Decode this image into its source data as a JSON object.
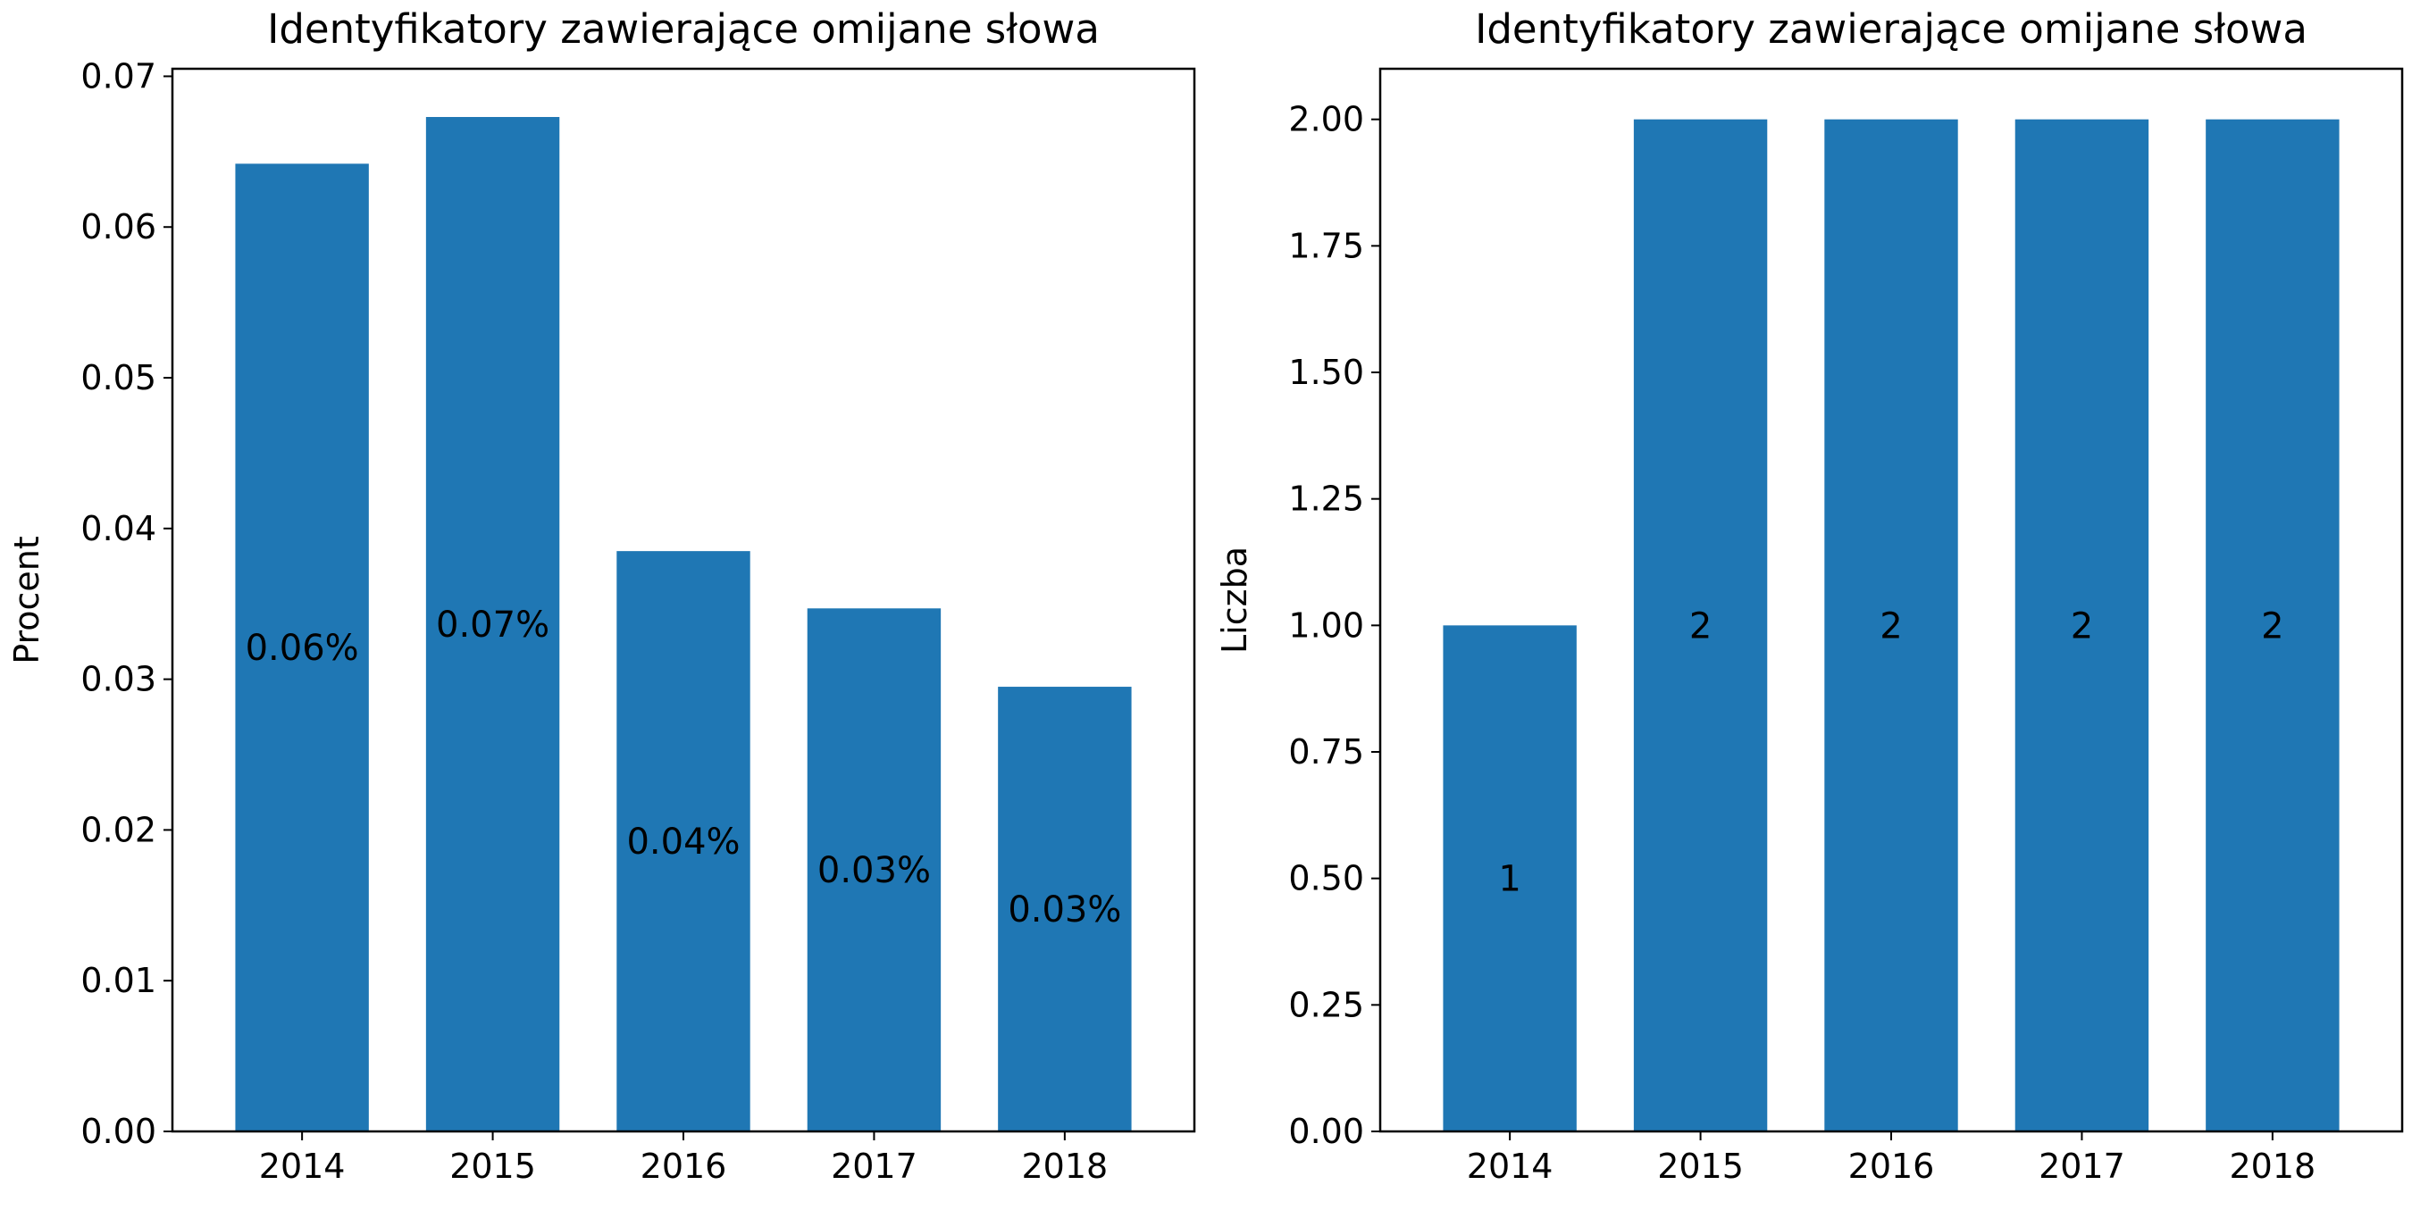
{
  "chart_data": [
    {
      "type": "bar",
      "title": "Identyfikatory zawierające omijane słowa",
      "xlabel": "",
      "ylabel": "Procent",
      "categories": [
        "2014",
        "2015",
        "2016",
        "2017",
        "2018"
      ],
      "values": [
        0.0642,
        0.0673,
        0.0385,
        0.0347,
        0.0295
      ],
      "bar_labels": [
        "0.06%",
        "0.07%",
        "0.04%",
        "0.03%",
        "0.03%"
      ],
      "ylim": [
        0,
        0.0705
      ],
      "yticks": [
        "0.00",
        "0.01",
        "0.02",
        "0.03",
        "0.04",
        "0.05",
        "0.06",
        "0.07"
      ],
      "ytick_values": [
        0,
        0.01,
        0.02,
        0.03,
        0.04,
        0.05,
        0.06,
        0.07
      ],
      "bar_color": "#1f77b4",
      "grid": false
    },
    {
      "type": "bar",
      "title": "Identyfikatory zawierające omijane słowa",
      "xlabel": "",
      "ylabel": "Liczba",
      "categories": [
        "2014",
        "2015",
        "2016",
        "2017",
        "2018"
      ],
      "values": [
        1,
        2,
        2,
        2,
        2
      ],
      "bar_labels": [
        "1",
        "2",
        "2",
        "2",
        "2"
      ],
      "ylim": [
        0,
        2.1
      ],
      "yticks": [
        "0.00",
        "0.25",
        "0.50",
        "0.75",
        "1.00",
        "1.25",
        "1.50",
        "1.75",
        "2.00"
      ],
      "ytick_values": [
        0,
        0.25,
        0.5,
        0.75,
        1.0,
        1.25,
        1.5,
        1.75,
        2.0
      ],
      "bar_color": "#1f77b4",
      "grid": false
    }
  ]
}
